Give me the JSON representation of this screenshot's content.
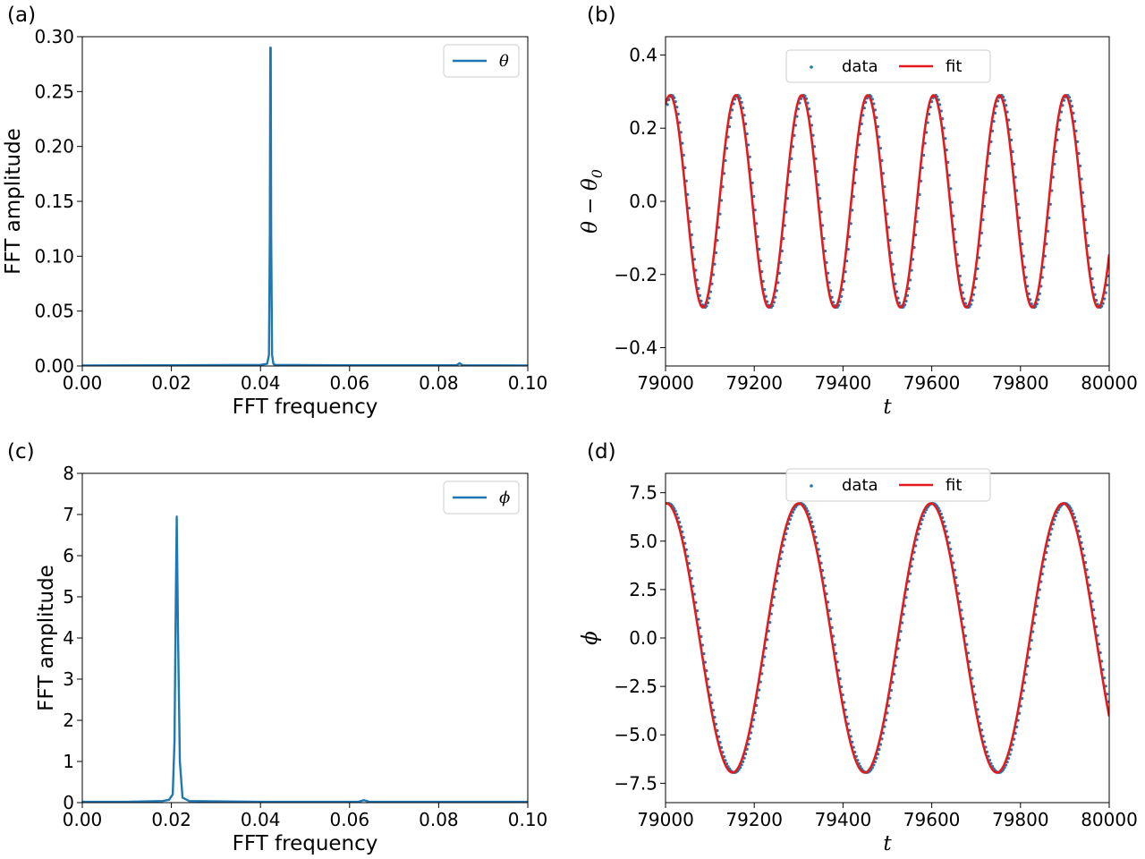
{
  "chart_data": [
    {
      "panel": "a",
      "type": "line",
      "panel_label": "(a)",
      "xlabel": "FFT frequency",
      "ylabel": "FFT amplitude",
      "xlim": [
        0.0,
        0.1
      ],
      "ylim": [
        0.0,
        0.3
      ],
      "xticks": [
        "0.00",
        "0.02",
        "0.04",
        "0.06",
        "0.08",
        "0.10"
      ],
      "yticks": [
        "0.00",
        "0.05",
        "0.10",
        "0.15",
        "0.20",
        "0.25",
        "0.30"
      ],
      "legend": {
        "location": "upper right",
        "entries": [
          {
            "label": "θ",
            "style": "line",
            "color": "#1f77b4"
          }
        ]
      },
      "series": [
        {
          "name": "θ",
          "color": "#1f77b4",
          "style": "line",
          "x": [
            0.0,
            0.02,
            0.04,
            0.0415,
            0.0419,
            0.0421,
            0.0422,
            0.0423,
            0.0424,
            0.0426,
            0.0429,
            0.0433,
            0.06,
            0.084,
            0.0847,
            0.0854,
            0.1
          ],
          "y": [
            0.0005,
            0.0006,
            0.001,
            0.002,
            0.01,
            0.12,
            0.29,
            0.29,
            0.12,
            0.01,
            0.002,
            0.001,
            0.0006,
            0.0006,
            0.0025,
            0.0006,
            0.0005
          ]
        }
      ]
    },
    {
      "panel": "b",
      "type": "line",
      "panel_label": "(b)",
      "xlabel": "t",
      "ylabel": "θ − θ",
      "ylabel_sub": "0",
      "xlim": [
        79000,
        80000
      ],
      "ylim": [
        -0.45,
        0.45
      ],
      "xticks": [
        "79000",
        "79200",
        "79400",
        "79600",
        "79800",
        "80000"
      ],
      "yticks": [
        "−0.4",
        "−0.2",
        "0.0",
        "0.2",
        "0.4"
      ],
      "legend": {
        "location": "upper center",
        "entries": [
          {
            "label": "data",
            "style": "dots",
            "color": "#1f77b4"
          },
          {
            "label": "fit",
            "style": "line",
            "color": "#e41a1c"
          }
        ]
      },
      "model": {
        "amplitude": 0.29,
        "period": 148.5,
        "t0": 79010,
        "phase": "cos"
      },
      "series": [
        {
          "name": "data",
          "color": "#1f77b4",
          "style": "dots",
          "samples": 330
        },
        {
          "name": "fit",
          "color": "#e41a1c",
          "style": "line",
          "samples": 700
        }
      ]
    },
    {
      "panel": "c",
      "type": "line",
      "panel_label": "(c)",
      "xlabel": "FFT frequency",
      "ylabel": "FFT amplitude",
      "xlim": [
        0.0,
        0.1
      ],
      "ylim": [
        0,
        8
      ],
      "xticks": [
        "0.00",
        "0.02",
        "0.04",
        "0.06",
        "0.08",
        "0.10"
      ],
      "yticks": [
        "0",
        "1",
        "2",
        "3",
        "4",
        "5",
        "6",
        "7",
        "8"
      ],
      "legend": {
        "location": "upper right",
        "entries": [
          {
            "label": "ϕ",
            "style": "line",
            "color": "#1f77b4"
          }
        ]
      },
      "series": [
        {
          "name": "ϕ",
          "color": "#1f77b4",
          "style": "line",
          "x": [
            0.0,
            0.01,
            0.018,
            0.0195,
            0.0203,
            0.0207,
            0.021,
            0.0212,
            0.0215,
            0.0219,
            0.0225,
            0.024,
            0.04,
            0.062,
            0.0632,
            0.0644,
            0.1
          ],
          "y": [
            0.02,
            0.02,
            0.04,
            0.07,
            0.2,
            1.5,
            5.0,
            6.95,
            4.0,
            1.0,
            0.12,
            0.04,
            0.02,
            0.02,
            0.06,
            0.02,
            0.02
          ]
        }
      ]
    },
    {
      "panel": "d",
      "type": "line",
      "panel_label": "(d)",
      "xlabel": "t",
      "ylabel": "ϕ",
      "xlim": [
        79000,
        80000
      ],
      "ylim": [
        -8.5,
        8.5
      ],
      "xticks": [
        "79000",
        "79200",
        "79400",
        "79600",
        "79800",
        "80000"
      ],
      "yticks": [
        "−7.5",
        "−5.0",
        "−2.5",
        "0.0",
        "2.5",
        "5.0",
        "7.5"
      ],
      "ytick_values": [
        -7.5,
        -5.0,
        -2.5,
        0.0,
        2.5,
        5.0,
        7.5
      ],
      "legend": {
        "location": "upper center",
        "entries": [
          {
            "label": "data",
            "style": "dots",
            "color": "#1f77b4"
          },
          {
            "label": "fit",
            "style": "line",
            "color": "#e41a1c"
          }
        ]
      },
      "model": {
        "amplitude": 6.95,
        "period": 298.0,
        "t0": 79002,
        "phase": "cos"
      },
      "series": [
        {
          "name": "data",
          "color": "#1f77b4",
          "style": "dots",
          "samples": 330
        },
        {
          "name": "fit",
          "color": "#e41a1c",
          "style": "line",
          "samples": 700
        }
      ]
    }
  ]
}
